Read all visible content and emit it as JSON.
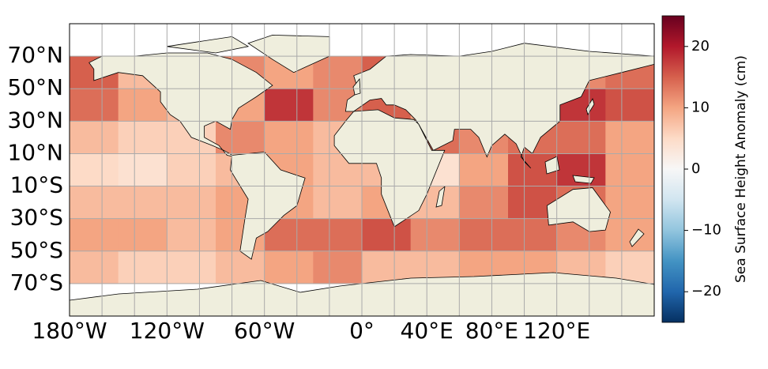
{
  "chart_data": {
    "type": "map",
    "xlim": [
      -180,
      180
    ],
    "ylim": [
      -90,
      90
    ],
    "xticks": [
      {
        "value": -180,
        "label": "180°W"
      },
      {
        "value": -120,
        "label": "120°W"
      },
      {
        "value": -60,
        "label": "60°W"
      },
      {
        "value": 0,
        "label": "0°"
      },
      {
        "value": 40,
        "label": "40°E"
      },
      {
        "value": 80,
        "label": "80°E"
      },
      {
        "value": 120,
        "label": "120°E"
      }
    ],
    "yticks": [
      {
        "value": 70,
        "label": "70°N"
      },
      {
        "value": 50,
        "label": "50°N"
      },
      {
        "value": 30,
        "label": "30°N"
      },
      {
        "value": 10,
        "label": "10°N"
      },
      {
        "value": -10,
        "label": "10°S"
      },
      {
        "value": -30,
        "label": "30°S"
      },
      {
        "value": -50,
        "label": "50°S"
      },
      {
        "value": -70,
        "label": "70°S"
      }
    ],
    "grid": true,
    "grid_lons": [
      -180,
      -160,
      -140,
      -120,
      -100,
      -80,
      -60,
      -40,
      -20,
      0,
      20,
      40,
      60,
      80,
      100,
      120,
      140,
      160,
      180
    ],
    "grid_lats": [
      -90,
      -70,
      -50,
      -30,
      -10,
      10,
      30,
      50,
      70,
      90
    ],
    "lat_edges": [
      70,
      50,
      30,
      10,
      -10,
      -30,
      -50,
      -70
    ],
    "lon_edges": [
      -180,
      -150,
      -120,
      -90,
      -60,
      -30,
      0,
      30,
      60,
      90,
      120,
      150,
      180
    ],
    "values": [
      [
        15,
        8,
        10,
        12,
        10,
        12,
        15,
        10,
        10,
        10,
        12,
        14
      ],
      [
        14,
        10,
        8,
        10,
        18,
        12,
        15,
        10,
        10,
        10,
        18,
        16
      ],
      [
        8,
        6,
        6,
        12,
        10,
        8,
        10,
        14,
        12,
        14,
        14,
        10
      ],
      [
        5,
        4,
        6,
        8,
        10,
        8,
        8,
        4,
        10,
        16,
        18,
        10
      ],
      [
        8,
        8,
        8,
        10,
        10,
        8,
        10,
        8,
        12,
        16,
        14,
        10
      ],
      [
        10,
        10,
        8,
        10,
        14,
        14,
        16,
        12,
        14,
        14,
        12,
        10
      ],
      [
        8,
        6,
        6,
        8,
        10,
        12,
        8,
        8,
        10,
        10,
        8,
        6
      ]
    ],
    "colormap": "RdBu_r",
    "clim": [
      -25,
      25
    ],
    "cticks": [
      {
        "value": -20,
        "label": "−20"
      },
      {
        "value": -10,
        "label": "−10"
      },
      0,
      10,
      20
    ],
    "colorbar_label": "Sea Surface Height Anomaly (cm)"
  }
}
